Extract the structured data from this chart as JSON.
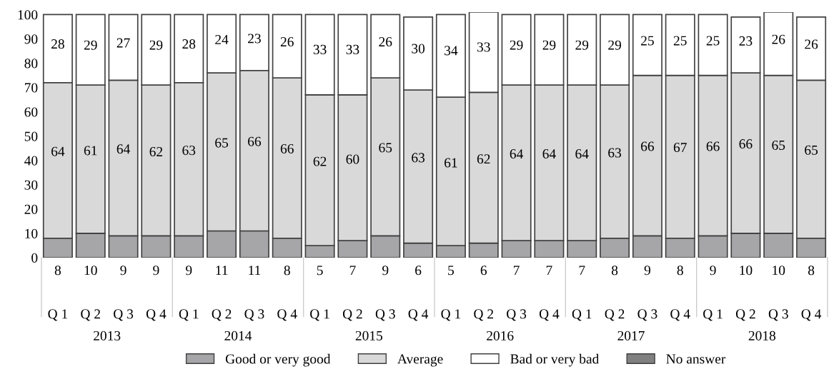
{
  "chart_data": {
    "type": "bar",
    "stacked": true,
    "data_labels": true,
    "legend": "bottom",
    "grid": false,
    "categories": [
      "Q 1",
      "Q 2",
      "Q 3",
      "Q 4",
      "Q 1",
      "Q 2",
      "Q 3",
      "Q 4",
      "Q 1",
      "Q 2",
      "Q 3",
      "Q 4",
      "Q 1",
      "Q 2",
      "Q 3",
      "Q 4",
      "Q 1",
      "Q 2",
      "Q 3",
      "Q 4",
      "Q 1",
      "Q 2",
      "Q 3",
      "Q 4"
    ],
    "ylim": [
      0,
      101
    ],
    "yticks": [
      100,
      90,
      80,
      70,
      60,
      50,
      40,
      30,
      20,
      10,
      0
    ],
    "series": [
      {
        "name": "Good or very good",
        "color": "#a6a5a7",
        "values": [
          8,
          10,
          9,
          9,
          9,
          11,
          11,
          8,
          5,
          7,
          9,
          6,
          5,
          6,
          7,
          7,
          7,
          8,
          9,
          8,
          9,
          10,
          10,
          8
        ]
      },
      {
        "name": "Average",
        "color": "#d9d9d9",
        "values": [
          64,
          61,
          64,
          62,
          63,
          65,
          66,
          66,
          62,
          60,
          65,
          63,
          61,
          62,
          64,
          64,
          64,
          63,
          66,
          67,
          66,
          66,
          65,
          65
        ]
      },
      {
        "name": "Bad or very bad",
        "color": "#ffffff",
        "values": [
          28,
          29,
          27,
          29,
          28,
          24,
          23,
          26,
          33,
          33,
          26,
          30,
          34,
          33,
          29,
          29,
          29,
          29,
          25,
          25,
          25,
          23,
          26,
          26
        ]
      },
      {
        "name": "No answer",
        "color": "#808080",
        "values": [
          null,
          null,
          null,
          null,
          null,
          null,
          null,
          null,
          null,
          null,
          null,
          null,
          null,
          null,
          null,
          null,
          null,
          null,
          null,
          null,
          null,
          null,
          null,
          null
        ]
      }
    ],
    "annotations": [
      "2013",
      "2014",
      "2015",
      "2016",
      "2017",
      "2018"
    ]
  }
}
